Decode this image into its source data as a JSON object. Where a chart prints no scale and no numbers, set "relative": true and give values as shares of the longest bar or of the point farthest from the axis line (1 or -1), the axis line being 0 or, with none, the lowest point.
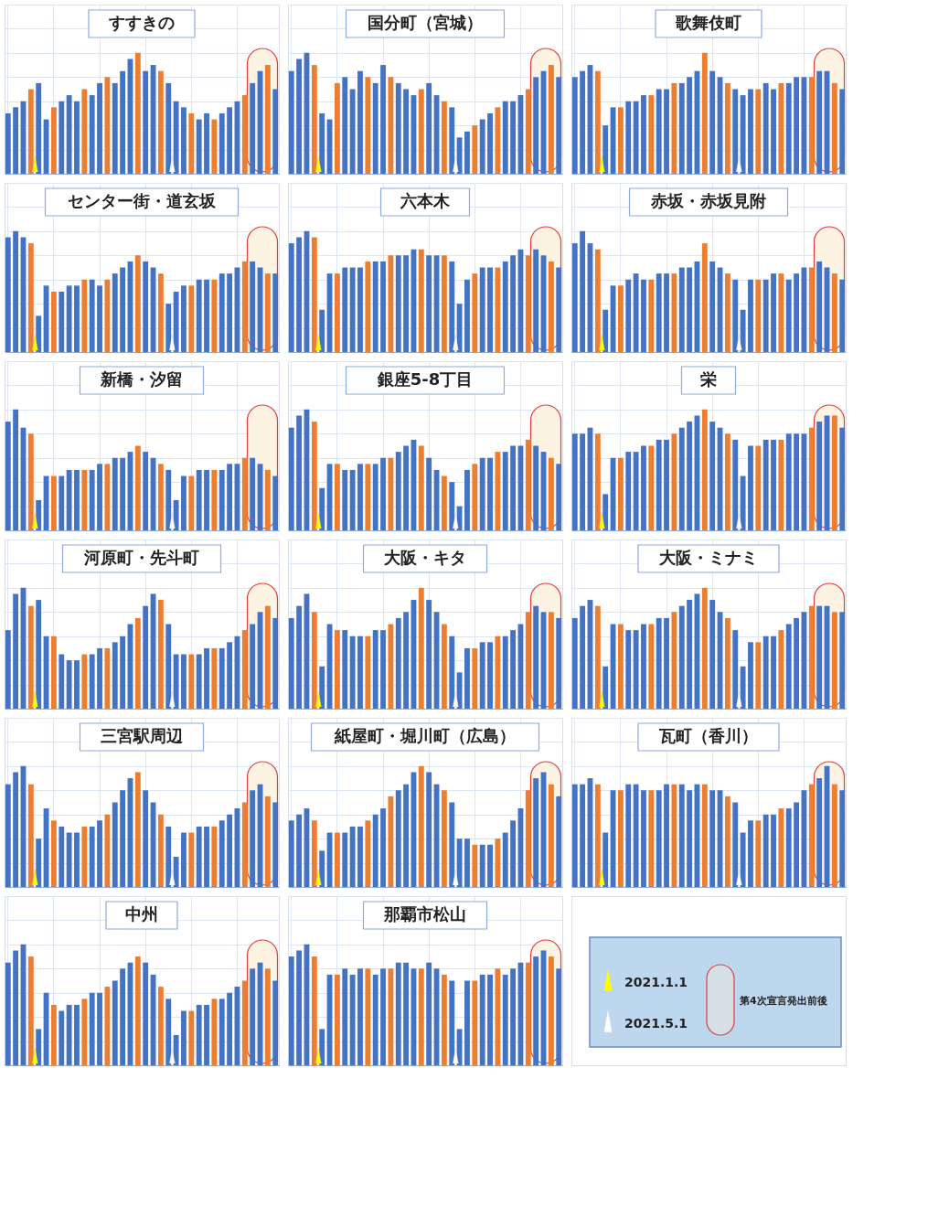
{
  "chart_data": [
    {
      "type": "bar",
      "title": "すすきの",
      "relative": true,
      "grid": true,
      "tick_labels": false,
      "categories": [
        null,
        null,
        null,
        null,
        null,
        null,
        null,
        null,
        null,
        null,
        null,
        null,
        null,
        null,
        null,
        null,
        null,
        null,
        null,
        null,
        null,
        null,
        null,
        null,
        null,
        null,
        null,
        null,
        null,
        null,
        null,
        null,
        null,
        null,
        null,
        null
      ],
      "values": [
        0.5,
        0.55,
        0.6,
        0.7,
        0.75,
        0.45,
        0.55,
        0.6,
        0.65,
        0.6,
        0.7,
        0.65,
        0.75,
        0.8,
        0.75,
        0.85,
        0.95,
        1.0,
        0.85,
        0.9,
        0.85,
        0.75,
        0.6,
        0.55,
        0.5,
        0.45,
        0.5,
        0.45,
        0.5,
        0.55,
        0.6,
        0.65,
        0.75,
        0.85,
        0.9,
        0.7
      ],
      "colors": [
        "#4472c4",
        "#4472c4",
        "#4472c4",
        "#ed7d31",
        "#4472c4",
        "#4472c4",
        "#ed7d31",
        "#4472c4",
        "#4472c4",
        "#4472c4",
        "#ed7d31",
        "#4472c4",
        "#4472c4",
        "#ed7d31",
        "#4472c4",
        "#4472c4",
        "#4472c4",
        "#ed7d31",
        "#4472c4",
        "#4472c4",
        "#ed7d31",
        "#4472c4",
        "#4472c4",
        "#4472c4",
        "#ed7d31",
        "#4472c4",
        "#4472c4",
        "#ed7d31",
        "#4472c4",
        "#4472c4",
        "#4472c4",
        "#ed7d31",
        "#4472c4",
        "#4472c4",
        "#ed7d31",
        "#4472c4"
      ]
    },
    {
      "type": "bar",
      "title": "国分町（宮城）",
      "relative": true,
      "grid": true,
      "tick_labels": false,
      "categories": [
        null,
        null,
        null,
        null,
        null,
        null,
        null,
        null,
        null,
        null,
        null,
        null,
        null,
        null,
        null,
        null,
        null,
        null,
        null,
        null,
        null,
        null,
        null,
        null,
        null,
        null,
        null,
        null,
        null,
        null,
        null,
        null,
        null,
        null,
        null,
        null
      ],
      "values": [
        0.85,
        0.95,
        1.0,
        0.9,
        0.5,
        0.45,
        0.75,
        0.8,
        0.7,
        0.85,
        0.8,
        0.75,
        0.9,
        0.8,
        0.75,
        0.7,
        0.65,
        0.7,
        0.75,
        0.65,
        0.6,
        0.55,
        0.3,
        0.35,
        0.4,
        0.45,
        0.5,
        0.55,
        0.6,
        0.6,
        0.65,
        0.7,
        0.8,
        0.85,
        0.9,
        0.8
      ],
      "colors": [
        "#4472c4",
        "#4472c4",
        "#4472c4",
        "#ed7d31",
        "#4472c4",
        "#4472c4",
        "#ed7d31",
        "#4472c4",
        "#4472c4",
        "#4472c4",
        "#ed7d31",
        "#4472c4",
        "#4472c4",
        "#ed7d31",
        "#4472c4",
        "#4472c4",
        "#4472c4",
        "#ed7d31",
        "#4472c4",
        "#4472c4",
        "#ed7d31",
        "#4472c4",
        "#4472c4",
        "#4472c4",
        "#ed7d31",
        "#4472c4",
        "#4472c4",
        "#ed7d31",
        "#4472c4",
        "#4472c4",
        "#4472c4",
        "#ed7d31",
        "#4472c4",
        "#4472c4",
        "#ed7d31",
        "#4472c4"
      ]
    },
    {
      "type": "bar",
      "title": "歌舞伎町",
      "relative": true,
      "grid": true,
      "tick_labels": false,
      "categories": [
        null,
        null,
        null,
        null,
        null,
        null,
        null,
        null,
        null,
        null,
        null,
        null,
        null,
        null,
        null,
        null,
        null,
        null,
        null,
        null,
        null,
        null,
        null,
        null,
        null,
        null,
        null,
        null,
        null,
        null,
        null,
        null,
        null,
        null,
        null,
        null
      ],
      "values": [
        0.8,
        0.85,
        0.9,
        0.85,
        0.4,
        0.55,
        0.55,
        0.6,
        0.6,
        0.65,
        0.65,
        0.7,
        0.7,
        0.75,
        0.75,
        0.8,
        0.85,
        1.0,
        0.85,
        0.8,
        0.75,
        0.7,
        0.65,
        0.7,
        0.7,
        0.75,
        0.7,
        0.75,
        0.75,
        0.8,
        0.8,
        0.8,
        0.85,
        0.85,
        0.75,
        0.7
      ],
      "colors": [
        "#4472c4",
        "#4472c4",
        "#4472c4",
        "#ed7d31",
        "#4472c4",
        "#4472c4",
        "#ed7d31",
        "#4472c4",
        "#4472c4",
        "#4472c4",
        "#ed7d31",
        "#4472c4",
        "#4472c4",
        "#ed7d31",
        "#4472c4",
        "#4472c4",
        "#4472c4",
        "#ed7d31",
        "#4472c4",
        "#4472c4",
        "#ed7d31",
        "#4472c4",
        "#4472c4",
        "#4472c4",
        "#ed7d31",
        "#4472c4",
        "#4472c4",
        "#ed7d31",
        "#4472c4",
        "#4472c4",
        "#4472c4",
        "#ed7d31",
        "#4472c4",
        "#4472c4",
        "#ed7d31",
        "#4472c4"
      ]
    },
    {
      "type": "bar",
      "title": "センター街・道玄坂",
      "relative": true,
      "grid": true,
      "tick_labels": false,
      "categories": [
        null,
        null,
        null,
        null,
        null,
        null,
        null,
        null,
        null,
        null,
        null,
        null,
        null,
        null,
        null,
        null,
        null,
        null,
        null,
        null,
        null,
        null,
        null,
        null,
        null,
        null,
        null,
        null,
        null,
        null,
        null,
        null,
        null,
        null,
        null,
        null
      ],
      "values": [
        0.95,
        1.0,
        0.95,
        0.9,
        0.3,
        0.55,
        0.5,
        0.5,
        0.55,
        0.55,
        0.6,
        0.6,
        0.55,
        0.6,
        0.65,
        0.7,
        0.75,
        0.8,
        0.75,
        0.7,
        0.65,
        0.4,
        0.5,
        0.55,
        0.55,
        0.6,
        0.6,
        0.6,
        0.65,
        0.65,
        0.7,
        0.75,
        0.75,
        0.7,
        0.65,
        0.65
      ],
      "colors": [
        "#4472c4",
        "#4472c4",
        "#4472c4",
        "#ed7d31",
        "#4472c4",
        "#4472c4",
        "#ed7d31",
        "#4472c4",
        "#4472c4",
        "#4472c4",
        "#ed7d31",
        "#4472c4",
        "#4472c4",
        "#ed7d31",
        "#4472c4",
        "#4472c4",
        "#4472c4",
        "#ed7d31",
        "#4472c4",
        "#4472c4",
        "#ed7d31",
        "#4472c4",
        "#4472c4",
        "#4472c4",
        "#ed7d31",
        "#4472c4",
        "#4472c4",
        "#ed7d31",
        "#4472c4",
        "#4472c4",
        "#4472c4",
        "#ed7d31",
        "#4472c4",
        "#4472c4",
        "#ed7d31",
        "#4472c4"
      ]
    },
    {
      "type": "bar",
      "title": "六本木",
      "relative": true,
      "grid": true,
      "tick_labels": false,
      "categories": [
        null,
        null,
        null,
        null,
        null,
        null,
        null,
        null,
        null,
        null,
        null,
        null,
        null,
        null,
        null,
        null,
        null,
        null,
        null,
        null,
        null,
        null,
        null,
        null,
        null,
        null,
        null,
        null,
        null,
        null,
        null,
        null,
        null,
        null,
        null,
        null
      ],
      "values": [
        0.9,
        0.95,
        1.0,
        0.95,
        0.35,
        0.65,
        0.65,
        0.7,
        0.7,
        0.7,
        0.75,
        0.75,
        0.75,
        0.8,
        0.8,
        0.8,
        0.85,
        0.85,
        0.8,
        0.8,
        0.8,
        0.75,
        0.4,
        0.6,
        0.65,
        0.7,
        0.7,
        0.7,
        0.75,
        0.8,
        0.85,
        0.8,
        0.85,
        0.8,
        0.75,
        0.7
      ],
      "colors": [
        "#4472c4",
        "#4472c4",
        "#4472c4",
        "#ed7d31",
        "#4472c4",
        "#4472c4",
        "#ed7d31",
        "#4472c4",
        "#4472c4",
        "#4472c4",
        "#ed7d31",
        "#4472c4",
        "#4472c4",
        "#ed7d31",
        "#4472c4",
        "#4472c4",
        "#4472c4",
        "#ed7d31",
        "#4472c4",
        "#4472c4",
        "#ed7d31",
        "#4472c4",
        "#4472c4",
        "#4472c4",
        "#ed7d31",
        "#4472c4",
        "#4472c4",
        "#ed7d31",
        "#4472c4",
        "#4472c4",
        "#4472c4",
        "#ed7d31",
        "#4472c4",
        "#4472c4",
        "#ed7d31",
        "#4472c4"
      ]
    },
    {
      "type": "bar",
      "title": "赤坂・赤坂見附",
      "relative": true,
      "grid": true,
      "tick_labels": false,
      "categories": [
        null,
        null,
        null,
        null,
        null,
        null,
        null,
        null,
        null,
        null,
        null,
        null,
        null,
        null,
        null,
        null,
        null,
        null,
        null,
        null,
        null,
        null,
        null,
        null,
        null,
        null,
        null,
        null,
        null,
        null,
        null,
        null,
        null,
        null,
        null,
        null
      ],
      "values": [
        0.9,
        1.0,
        0.9,
        0.85,
        0.35,
        0.55,
        0.55,
        0.6,
        0.65,
        0.6,
        0.6,
        0.65,
        0.65,
        0.65,
        0.7,
        0.7,
        0.75,
        0.9,
        0.75,
        0.7,
        0.65,
        0.6,
        0.35,
        0.6,
        0.6,
        0.6,
        0.65,
        0.65,
        0.6,
        0.65,
        0.7,
        0.7,
        0.75,
        0.7,
        0.65,
        0.6
      ],
      "colors": [
        "#4472c4",
        "#4472c4",
        "#4472c4",
        "#ed7d31",
        "#4472c4",
        "#4472c4",
        "#ed7d31",
        "#4472c4",
        "#4472c4",
        "#4472c4",
        "#ed7d31",
        "#4472c4",
        "#4472c4",
        "#ed7d31",
        "#4472c4",
        "#4472c4",
        "#4472c4",
        "#ed7d31",
        "#4472c4",
        "#4472c4",
        "#ed7d31",
        "#4472c4",
        "#4472c4",
        "#4472c4",
        "#ed7d31",
        "#4472c4",
        "#4472c4",
        "#ed7d31",
        "#4472c4",
        "#4472c4",
        "#4472c4",
        "#ed7d31",
        "#4472c4",
        "#4472c4",
        "#ed7d31",
        "#4472c4"
      ]
    },
    {
      "type": "bar",
      "title": "新橋・汐留",
      "relative": true,
      "grid": true,
      "tick_labels": false,
      "categories": [
        null,
        null,
        null,
        null,
        null,
        null,
        null,
        null,
        null,
        null,
        null,
        null,
        null,
        null,
        null,
        null,
        null,
        null,
        null,
        null,
        null,
        null,
        null,
        null,
        null,
        null,
        null,
        null,
        null,
        null,
        null,
        null,
        null,
        null,
        null,
        null
      ],
      "values": [
        0.9,
        1.0,
        0.85,
        0.8,
        0.25,
        0.45,
        0.45,
        0.45,
        0.5,
        0.5,
        0.5,
        0.5,
        0.55,
        0.55,
        0.6,
        0.6,
        0.65,
        0.7,
        0.65,
        0.6,
        0.55,
        0.5,
        0.25,
        0.45,
        0.45,
        0.5,
        0.5,
        0.5,
        0.5,
        0.55,
        0.55,
        0.6,
        0.6,
        0.55,
        0.5,
        0.45
      ],
      "colors": [
        "#4472c4",
        "#4472c4",
        "#4472c4",
        "#ed7d31",
        "#4472c4",
        "#4472c4",
        "#ed7d31",
        "#4472c4",
        "#4472c4",
        "#4472c4",
        "#ed7d31",
        "#4472c4",
        "#4472c4",
        "#ed7d31",
        "#4472c4",
        "#4472c4",
        "#4472c4",
        "#ed7d31",
        "#4472c4",
        "#4472c4",
        "#ed7d31",
        "#4472c4",
        "#4472c4",
        "#4472c4",
        "#ed7d31",
        "#4472c4",
        "#4472c4",
        "#ed7d31",
        "#4472c4",
        "#4472c4",
        "#4472c4",
        "#ed7d31",
        "#4472c4",
        "#4472c4",
        "#ed7d31",
        "#4472c4"
      ]
    },
    {
      "type": "bar",
      "title": "銀座5-8丁目",
      "relative": true,
      "grid": true,
      "tick_labels": false,
      "categories": [
        null,
        null,
        null,
        null,
        null,
        null,
        null,
        null,
        null,
        null,
        null,
        null,
        null,
        null,
        null,
        null,
        null,
        null,
        null,
        null,
        null,
        null,
        null,
        null,
        null,
        null,
        null,
        null,
        null,
        null,
        null,
        null,
        null,
        null,
        null,
        null
      ],
      "values": [
        0.85,
        0.95,
        1.0,
        0.9,
        0.35,
        0.55,
        0.55,
        0.5,
        0.5,
        0.55,
        0.55,
        0.55,
        0.6,
        0.6,
        0.65,
        0.7,
        0.75,
        0.7,
        0.6,
        0.5,
        0.45,
        0.4,
        0.2,
        0.5,
        0.55,
        0.6,
        0.6,
        0.65,
        0.65,
        0.7,
        0.7,
        0.75,
        0.7,
        0.65,
        0.6,
        0.55
      ],
      "colors": [
        "#4472c4",
        "#4472c4",
        "#4472c4",
        "#ed7d31",
        "#4472c4",
        "#4472c4",
        "#ed7d31",
        "#4472c4",
        "#4472c4",
        "#4472c4",
        "#ed7d31",
        "#4472c4",
        "#4472c4",
        "#ed7d31",
        "#4472c4",
        "#4472c4",
        "#4472c4",
        "#ed7d31",
        "#4472c4",
        "#4472c4",
        "#ed7d31",
        "#4472c4",
        "#4472c4",
        "#4472c4",
        "#ed7d31",
        "#4472c4",
        "#4472c4",
        "#ed7d31",
        "#4472c4",
        "#4472c4",
        "#4472c4",
        "#ed7d31",
        "#4472c4",
        "#4472c4",
        "#ed7d31",
        "#4472c4"
      ]
    },
    {
      "type": "bar",
      "title": "栄",
      "relative": true,
      "grid": true,
      "tick_labels": false,
      "categories": [
        null,
        null,
        null,
        null,
        null,
        null,
        null,
        null,
        null,
        null,
        null,
        null,
        null,
        null,
        null,
        null,
        null,
        null,
        null,
        null,
        null,
        null,
        null,
        null,
        null,
        null,
        null,
        null,
        null,
        null,
        null,
        null,
        null,
        null,
        null,
        null
      ],
      "values": [
        0.8,
        0.8,
        0.85,
        0.8,
        0.3,
        0.6,
        0.6,
        0.65,
        0.65,
        0.7,
        0.7,
        0.75,
        0.75,
        0.8,
        0.85,
        0.9,
        0.95,
        1.0,
        0.9,
        0.85,
        0.8,
        0.75,
        0.45,
        0.7,
        0.7,
        0.75,
        0.75,
        0.75,
        0.8,
        0.8,
        0.8,
        0.85,
        0.9,
        0.95,
        0.95,
        0.85
      ],
      "colors": [
        "#4472c4",
        "#4472c4",
        "#4472c4",
        "#ed7d31",
        "#4472c4",
        "#4472c4",
        "#ed7d31",
        "#4472c4",
        "#4472c4",
        "#4472c4",
        "#ed7d31",
        "#4472c4",
        "#4472c4",
        "#ed7d31",
        "#4472c4",
        "#4472c4",
        "#4472c4",
        "#ed7d31",
        "#4472c4",
        "#4472c4",
        "#ed7d31",
        "#4472c4",
        "#4472c4",
        "#4472c4",
        "#ed7d31",
        "#4472c4",
        "#4472c4",
        "#ed7d31",
        "#4472c4",
        "#4472c4",
        "#4472c4",
        "#ed7d31",
        "#4472c4",
        "#4472c4",
        "#ed7d31",
        "#4472c4"
      ]
    },
    {
      "type": "bar",
      "title": "河原町・先斗町",
      "relative": true,
      "grid": true,
      "tick_labels": false,
      "categories": [
        null,
        null,
        null,
        null,
        null,
        null,
        null,
        null,
        null,
        null,
        null,
        null,
        null,
        null,
        null,
        null,
        null,
        null,
        null,
        null,
        null,
        null,
        null,
        null,
        null,
        null,
        null,
        null,
        null,
        null,
        null,
        null,
        null,
        null,
        null,
        null
      ],
      "values": [
        0.65,
        0.95,
        1.0,
        0.85,
        0.9,
        0.6,
        0.6,
        0.45,
        0.4,
        0.4,
        0.45,
        0.45,
        0.5,
        0.5,
        0.55,
        0.6,
        0.7,
        0.75,
        0.85,
        0.95,
        0.9,
        0.7,
        0.45,
        0.45,
        0.45,
        0.45,
        0.5,
        0.5,
        0.5,
        0.55,
        0.6,
        0.65,
        0.7,
        0.8,
        0.85,
        0.75
      ],
      "colors": [
        "#4472c4",
        "#4472c4",
        "#4472c4",
        "#ed7d31",
        "#4472c4",
        "#4472c4",
        "#ed7d31",
        "#4472c4",
        "#4472c4",
        "#4472c4",
        "#ed7d31",
        "#4472c4",
        "#4472c4",
        "#ed7d31",
        "#4472c4",
        "#4472c4",
        "#4472c4",
        "#ed7d31",
        "#4472c4",
        "#4472c4",
        "#ed7d31",
        "#4472c4",
        "#4472c4",
        "#4472c4",
        "#ed7d31",
        "#4472c4",
        "#4472c4",
        "#ed7d31",
        "#4472c4",
        "#4472c4",
        "#4472c4",
        "#ed7d31",
        "#4472c4",
        "#4472c4",
        "#ed7d31",
        "#4472c4"
      ]
    },
    {
      "type": "bar",
      "title": "大阪・キタ",
      "relative": true,
      "grid": true,
      "tick_labels": false,
      "categories": [
        null,
        null,
        null,
        null,
        null,
        null,
        null,
        null,
        null,
        null,
        null,
        null,
        null,
        null,
        null,
        null,
        null,
        null,
        null,
        null,
        null,
        null,
        null,
        null,
        null,
        null,
        null,
        null,
        null,
        null,
        null,
        null,
        null,
        null,
        null,
        null
      ],
      "values": [
        0.75,
        0.85,
        0.95,
        0.8,
        0.35,
        0.7,
        0.65,
        0.65,
        0.6,
        0.6,
        0.6,
        0.65,
        0.65,
        0.7,
        0.75,
        0.8,
        0.9,
        1.0,
        0.9,
        0.8,
        0.7,
        0.6,
        0.3,
        0.5,
        0.5,
        0.55,
        0.55,
        0.6,
        0.6,
        0.65,
        0.7,
        0.8,
        0.85,
        0.8,
        0.8,
        0.75
      ],
      "colors": [
        "#4472c4",
        "#4472c4",
        "#4472c4",
        "#ed7d31",
        "#4472c4",
        "#4472c4",
        "#ed7d31",
        "#4472c4",
        "#4472c4",
        "#4472c4",
        "#ed7d31",
        "#4472c4",
        "#4472c4",
        "#ed7d31",
        "#4472c4",
        "#4472c4",
        "#4472c4",
        "#ed7d31",
        "#4472c4",
        "#4472c4",
        "#ed7d31",
        "#4472c4",
        "#4472c4",
        "#4472c4",
        "#ed7d31",
        "#4472c4",
        "#4472c4",
        "#ed7d31",
        "#4472c4",
        "#4472c4",
        "#4472c4",
        "#ed7d31",
        "#4472c4",
        "#4472c4",
        "#ed7d31",
        "#4472c4"
      ]
    },
    {
      "type": "bar",
      "title": "大阪・ミナミ",
      "relative": true,
      "grid": true,
      "tick_labels": false,
      "categories": [
        null,
        null,
        null,
        null,
        null,
        null,
        null,
        null,
        null,
        null,
        null,
        null,
        null,
        null,
        null,
        null,
        null,
        null,
        null,
        null,
        null,
        null,
        null,
        null,
        null,
        null,
        null,
        null,
        null,
        null,
        null,
        null,
        null,
        null,
        null,
        null
      ],
      "values": [
        0.75,
        0.85,
        0.9,
        0.85,
        0.35,
        0.7,
        0.7,
        0.65,
        0.65,
        0.7,
        0.7,
        0.75,
        0.75,
        0.8,
        0.85,
        0.9,
        0.95,
        1.0,
        0.9,
        0.8,
        0.75,
        0.65,
        0.35,
        0.55,
        0.55,
        0.6,
        0.6,
        0.65,
        0.7,
        0.75,
        0.8,
        0.85,
        0.85,
        0.85,
        0.8,
        0.8
      ],
      "colors": [
        "#4472c4",
        "#4472c4",
        "#4472c4",
        "#ed7d31",
        "#4472c4",
        "#4472c4",
        "#ed7d31",
        "#4472c4",
        "#4472c4",
        "#4472c4",
        "#ed7d31",
        "#4472c4",
        "#4472c4",
        "#ed7d31",
        "#4472c4",
        "#4472c4",
        "#4472c4",
        "#ed7d31",
        "#4472c4",
        "#4472c4",
        "#ed7d31",
        "#4472c4",
        "#4472c4",
        "#4472c4",
        "#ed7d31",
        "#4472c4",
        "#4472c4",
        "#ed7d31",
        "#4472c4",
        "#4472c4",
        "#4472c4",
        "#ed7d31",
        "#4472c4",
        "#4472c4",
        "#ed7d31",
        "#4472c4"
      ]
    },
    {
      "type": "bar",
      "title": "三宮駅周辺",
      "relative": true,
      "grid": true,
      "tick_labels": false,
      "categories": [
        null,
        null,
        null,
        null,
        null,
        null,
        null,
        null,
        null,
        null,
        null,
        null,
        null,
        null,
        null,
        null,
        null,
        null,
        null,
        null,
        null,
        null,
        null,
        null,
        null,
        null,
        null,
        null,
        null,
        null,
        null,
        null,
        null,
        null,
        null,
        null
      ],
      "values": [
        0.85,
        0.95,
        1.0,
        0.85,
        0.4,
        0.65,
        0.55,
        0.5,
        0.45,
        0.45,
        0.5,
        0.5,
        0.55,
        0.6,
        0.7,
        0.8,
        0.9,
        0.95,
        0.8,
        0.7,
        0.6,
        0.5,
        0.25,
        0.45,
        0.45,
        0.5,
        0.5,
        0.5,
        0.55,
        0.6,
        0.65,
        0.7,
        0.8,
        0.85,
        0.75,
        0.7
      ],
      "colors": [
        "#4472c4",
        "#4472c4",
        "#4472c4",
        "#ed7d31",
        "#4472c4",
        "#4472c4",
        "#ed7d31",
        "#4472c4",
        "#4472c4",
        "#4472c4",
        "#ed7d31",
        "#4472c4",
        "#4472c4",
        "#ed7d31",
        "#4472c4",
        "#4472c4",
        "#4472c4",
        "#ed7d31",
        "#4472c4",
        "#4472c4",
        "#ed7d31",
        "#4472c4",
        "#4472c4",
        "#4472c4",
        "#ed7d31",
        "#4472c4",
        "#4472c4",
        "#ed7d31",
        "#4472c4",
        "#4472c4",
        "#4472c4",
        "#ed7d31",
        "#4472c4",
        "#4472c4",
        "#ed7d31",
        "#4472c4"
      ]
    },
    {
      "type": "bar",
      "title": "紙屋町・堀川町（広島）",
      "relative": true,
      "grid": true,
      "tick_labels": false,
      "categories": [
        null,
        null,
        null,
        null,
        null,
        null,
        null,
        null,
        null,
        null,
        null,
        null,
        null,
        null,
        null,
        null,
        null,
        null,
        null,
        null,
        null,
        null,
        null,
        null,
        null,
        null,
        null,
        null,
        null,
        null,
        null,
        null,
        null,
        null,
        null,
        null
      ],
      "values": [
        0.55,
        0.6,
        0.65,
        0.55,
        0.3,
        0.45,
        0.45,
        0.45,
        0.5,
        0.5,
        0.55,
        0.6,
        0.65,
        0.75,
        0.8,
        0.85,
        0.95,
        1.0,
        0.95,
        0.85,
        0.8,
        0.7,
        0.4,
        0.4,
        0.35,
        0.35,
        0.35,
        0.4,
        0.45,
        0.55,
        0.65,
        0.8,
        0.9,
        0.95,
        0.85,
        0.75
      ],
      "colors": [
        "#4472c4",
        "#4472c4",
        "#4472c4",
        "#ed7d31",
        "#4472c4",
        "#4472c4",
        "#ed7d31",
        "#4472c4",
        "#4472c4",
        "#4472c4",
        "#ed7d31",
        "#4472c4",
        "#4472c4",
        "#ed7d31",
        "#4472c4",
        "#4472c4",
        "#4472c4",
        "#ed7d31",
        "#4472c4",
        "#4472c4",
        "#ed7d31",
        "#4472c4",
        "#4472c4",
        "#4472c4",
        "#ed7d31",
        "#4472c4",
        "#4472c4",
        "#ed7d31",
        "#4472c4",
        "#4472c4",
        "#4472c4",
        "#ed7d31",
        "#4472c4",
        "#4472c4",
        "#ed7d31",
        "#4472c4"
      ]
    },
    {
      "type": "bar",
      "title": "瓦町（香川）",
      "relative": true,
      "grid": true,
      "tick_labels": false,
      "categories": [
        null,
        null,
        null,
        null,
        null,
        null,
        null,
        null,
        null,
        null,
        null,
        null,
        null,
        null,
        null,
        null,
        null,
        null,
        null,
        null,
        null,
        null,
        null,
        null,
        null,
        null,
        null,
        null,
        null,
        null,
        null,
        null,
        null,
        null,
        null,
        null
      ],
      "values": [
        0.85,
        0.85,
        0.9,
        0.85,
        0.45,
        0.8,
        0.8,
        0.85,
        0.85,
        0.8,
        0.8,
        0.8,
        0.85,
        0.85,
        0.85,
        0.8,
        0.85,
        0.85,
        0.8,
        0.8,
        0.75,
        0.7,
        0.45,
        0.55,
        0.55,
        0.6,
        0.6,
        0.65,
        0.65,
        0.7,
        0.8,
        0.85,
        0.9,
        1.0,
        0.85,
        0.8
      ],
      "colors": [
        "#4472c4",
        "#4472c4",
        "#4472c4",
        "#ed7d31",
        "#4472c4",
        "#4472c4",
        "#ed7d31",
        "#4472c4",
        "#4472c4",
        "#4472c4",
        "#ed7d31",
        "#4472c4",
        "#4472c4",
        "#ed7d31",
        "#4472c4",
        "#4472c4",
        "#4472c4",
        "#ed7d31",
        "#4472c4",
        "#4472c4",
        "#ed7d31",
        "#4472c4",
        "#4472c4",
        "#4472c4",
        "#ed7d31",
        "#4472c4",
        "#4472c4",
        "#ed7d31",
        "#4472c4",
        "#4472c4",
        "#4472c4",
        "#ed7d31",
        "#4472c4",
        "#4472c4",
        "#ed7d31",
        "#4472c4"
      ]
    },
    {
      "type": "bar",
      "title": "中州",
      "relative": true,
      "grid": true,
      "tick_labels": false,
      "categories": [
        null,
        null,
        null,
        null,
        null,
        null,
        null,
        null,
        null,
        null,
        null,
        null,
        null,
        null,
        null,
        null,
        null,
        null,
        null,
        null,
        null,
        null,
        null,
        null,
        null,
        null,
        null,
        null,
        null,
        null,
        null,
        null,
        null,
        null,
        null,
        null
      ],
      "values": [
        0.85,
        0.95,
        1.0,
        0.9,
        0.3,
        0.6,
        0.5,
        0.45,
        0.5,
        0.5,
        0.55,
        0.6,
        0.6,
        0.65,
        0.7,
        0.8,
        0.85,
        0.9,
        0.85,
        0.75,
        0.65,
        0.55,
        0.25,
        0.45,
        0.45,
        0.5,
        0.5,
        0.55,
        0.55,
        0.6,
        0.65,
        0.7,
        0.8,
        0.85,
        0.8,
        0.7
      ],
      "colors": [
        "#4472c4",
        "#4472c4",
        "#4472c4",
        "#ed7d31",
        "#4472c4",
        "#4472c4",
        "#ed7d31",
        "#4472c4",
        "#4472c4",
        "#4472c4",
        "#ed7d31",
        "#4472c4",
        "#4472c4",
        "#ed7d31",
        "#4472c4",
        "#4472c4",
        "#4472c4",
        "#ed7d31",
        "#4472c4",
        "#4472c4",
        "#ed7d31",
        "#4472c4",
        "#4472c4",
        "#4472c4",
        "#ed7d31",
        "#4472c4",
        "#4472c4",
        "#ed7d31",
        "#4472c4",
        "#4472c4",
        "#4472c4",
        "#ed7d31",
        "#4472c4",
        "#4472c4",
        "#ed7d31",
        "#4472c4"
      ]
    },
    {
      "type": "bar",
      "title": "那覇市松山",
      "relative": true,
      "grid": true,
      "tick_labels": false,
      "categories": [
        null,
        null,
        null,
        null,
        null,
        null,
        null,
        null,
        null,
        null,
        null,
        null,
        null,
        null,
        null,
        null,
        null,
        null,
        null,
        null,
        null,
        null,
        null,
        null,
        null,
        null,
        null,
        null,
        null,
        null,
        null,
        null,
        null,
        null,
        null,
        null
      ],
      "values": [
        0.9,
        0.95,
        1.0,
        0.9,
        0.3,
        0.75,
        0.75,
        0.8,
        0.75,
        0.8,
        0.8,
        0.75,
        0.8,
        0.8,
        0.85,
        0.85,
        0.8,
        0.8,
        0.85,
        0.8,
        0.75,
        0.7,
        0.3,
        0.7,
        0.7,
        0.75,
        0.75,
        0.8,
        0.75,
        0.8,
        0.85,
        0.85,
        0.9,
        0.95,
        0.9,
        0.8
      ],
      "colors": [
        "#4472c4",
        "#4472c4",
        "#4472c4",
        "#ed7d31",
        "#4472c4",
        "#4472c4",
        "#ed7d31",
        "#4472c4",
        "#4472c4",
        "#4472c4",
        "#ed7d31",
        "#4472c4",
        "#4472c4",
        "#ed7d31",
        "#4472c4",
        "#4472c4",
        "#4472c4",
        "#ed7d31",
        "#4472c4",
        "#4472c4",
        "#ed7d31",
        "#4472c4",
        "#4472c4",
        "#4472c4",
        "#ed7d31",
        "#4472c4",
        "#4472c4",
        "#ed7d31",
        "#4472c4",
        "#4472c4",
        "#4472c4",
        "#ed7d31",
        "#4472c4",
        "#4472c4",
        "#ed7d31",
        "#4472c4"
      ]
    },
    {
      "type": "other",
      "annotations": [
        "2021.1.1",
        "2021.5.1",
        "第4次宣言発出前後"
      ]
    }
  ]
}
